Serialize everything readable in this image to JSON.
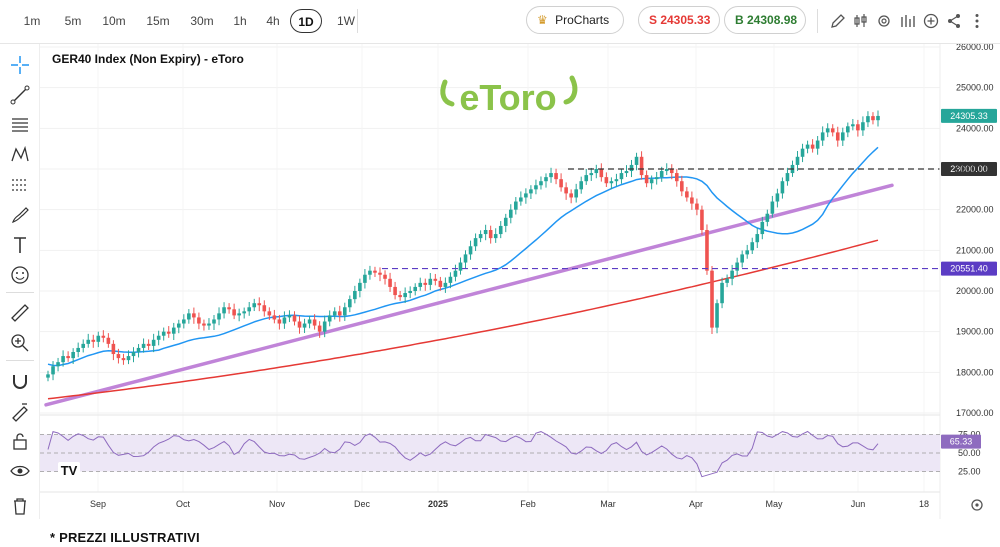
{
  "toolbar": {
    "timeframes": [
      "1m",
      "5m",
      "10m",
      "15m",
      "30m",
      "1h",
      "4h",
      "1D",
      "1W"
    ],
    "active_timeframe": "1D",
    "procharts_label": "ProCharts",
    "sell_label": "S 24305.33",
    "buy_label": "B 24308.98",
    "icons": [
      "pencil-icon",
      "candles-icon",
      "settings-icon",
      "indicators-icon",
      "add-icon",
      "share-icon",
      "more-icon"
    ]
  },
  "sidebar": {
    "icons": [
      "crosshair-icon",
      "trendline-icon",
      "fib-icon",
      "pattern-icon",
      "channel-icon",
      "brush-icon",
      "text-icon",
      "emoji-icon",
      "ruler-icon",
      "zoom-icon",
      "magnet-icon",
      "lock-drawing-icon",
      "lock-icon",
      "eye-icon",
      "trash-icon"
    ]
  },
  "chart": {
    "title": "GER40 Index (Non Expiry) - eToro",
    "watermark": "eToro",
    "tv_logo": "TV",
    "colors": {
      "up": "#26a69a",
      "down": "#ef5350",
      "ma_fast": "#2196f3",
      "ma_slow": "#e53935",
      "trend": "#c084d8",
      "rsi": "#8e6bbf",
      "rsi_band": "#ede7f6",
      "green_tag": "#26a69a",
      "purple": "#5b3cc4"
    }
  },
  "chart_data": {
    "type": "candlestick",
    "instrument": "GER40 Index (Non Expiry)",
    "timeframe": "1D",
    "y_ticks": [
      "17000.00",
      "18000.00",
      "19000.00",
      "20000.00",
      "21000.00",
      "22000.00",
      "23000.00",
      "24000.00",
      "25000.00",
      "26000.00"
    ],
    "ylim": [
      17000,
      26000
    ],
    "x_ticks": [
      "Sep",
      "Oct",
      "Nov",
      "Dec",
      "2025",
      "Feb",
      "Mar",
      "Apr",
      "May",
      "Jun",
      "18"
    ],
    "price_tag": "24305.33",
    "level_high": "23000.00",
    "level_low": "20551.40",
    "closes": [
      17950,
      18150,
      18250,
      18400,
      18350,
      18500,
      18600,
      18700,
      18800,
      18750,
      18900,
      18850,
      18700,
      18450,
      18350,
      18300,
      18400,
      18500,
      18600,
      18700,
      18650,
      18800,
      18900,
      19000,
      18950,
      19100,
      19200,
      19300,
      19450,
      19350,
      19200,
      19150,
      19200,
      19300,
      19450,
      19600,
      19550,
      19400,
      19450,
      19500,
      19600,
      19700,
      19650,
      19500,
      19400,
      19300,
      19200,
      19350,
      19400,
      19250,
      19100,
      19200,
      19300,
      19150,
      19000,
      19250,
      19400,
      19500,
      19400,
      19600,
      19800,
      20000,
      20200,
      20400,
      20500,
      20450,
      20400,
      20300,
      20100,
      19900,
      19850,
      19950,
      20000,
      20100,
      20200,
      20150,
      20300,
      20250,
      20100,
      20200,
      20350,
      20500,
      20700,
      20900,
      21100,
      21300,
      21400,
      21500,
      21300,
      21400,
      21600,
      21800,
      22000,
      22200,
      22300,
      22400,
      22500,
      22600,
      22700,
      22800,
      22900,
      22750,
      22550,
      22400,
      22300,
      22500,
      22700,
      22850,
      22900,
      23000,
      22800,
      22650,
      22700,
      22750,
      22900,
      22950,
      23100,
      23300,
      22850,
      22650,
      22750,
      22800,
      22950,
      23000,
      22900,
      22700,
      22450,
      22300,
      22150,
      22000,
      21500,
      20500,
      19100,
      19700,
      20200,
      20300,
      20500,
      20700,
      20900,
      21000,
      21200,
      21400,
      21700,
      21900,
      22200,
      22400,
      22700,
      22900,
      23100,
      23300,
      23500,
      23600,
      23500,
      23700,
      23900,
      24000,
      23900,
      23700,
      23900,
      24050,
      24100,
      23950,
      24150,
      24300,
      24200,
      24305
    ],
    "ma_fast": {
      "start": 18200,
      "end": 23150
    },
    "ma_slow": {
      "start": 17350,
      "end": 21250
    },
    "trend_line": {
      "start": 17200,
      "end": 22600
    },
    "rsi_ticks": [
      "75.00",
      "50.00",
      "25.00"
    ],
    "rsi_value": "65.33",
    "rsi_ylim": [
      0,
      100
    ]
  },
  "footer": {
    "note": "* PREZZI ILLUSTRATIVI"
  }
}
